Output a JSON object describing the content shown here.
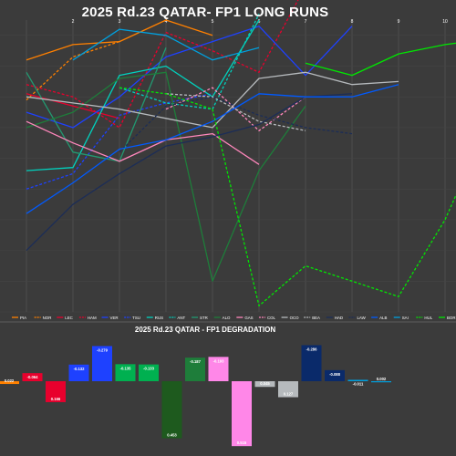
{
  "chart_data": [
    {
      "type": "line",
      "title": "2025 Rd.23 QATAR- FP1 LONG RUNS",
      "x_ticks": [
        "2",
        "3",
        "4",
        "5",
        "6",
        "7",
        "8",
        "9",
        "10",
        "11"
      ],
      "x": [
        1,
        2,
        3,
        4,
        5,
        6,
        7,
        8,
        9,
        10,
        11
      ],
      "grid": true,
      "legend_position": "bottom",
      "series": [
        {
          "name": "PIA",
          "color": "#ff8000",
          "dash": "solid",
          "values": [
            68,
            63,
            62,
            55,
            60,
            null,
            null,
            null,
            null,
            null,
            null
          ]
        },
        {
          "name": "NOR",
          "color": "#ff8000",
          "dash": "dashed",
          "values": [
            81,
            67,
            62,
            null,
            null,
            null,
            null,
            null,
            null,
            null,
            null
          ]
        },
        {
          "name": "LEC",
          "color": "#e8002d",
          "dash": "solid",
          "values": [
            79,
            83,
            87,
            null,
            null,
            null,
            null,
            null,
            null,
            null,
            null
          ]
        },
        {
          "name": "HAM",
          "color": "#e8002d",
          "dash": "dashed",
          "values": [
            76,
            80,
            90,
            59,
            65,
            72,
            44,
            null,
            null,
            null,
            null
          ]
        },
        {
          "name": "VER",
          "color": "#1e41ff",
          "dash": "solid",
          "values": [
            85,
            90,
            80,
            67,
            62,
            57,
            73,
            57,
            null,
            null,
            null
          ]
        },
        {
          "name": "TSU",
          "color": "#1e41ff",
          "dash": "dashed",
          "values": [
            110,
            105,
            86,
            82,
            79,
            null,
            null,
            null,
            null,
            null,
            null
          ]
        },
        {
          "name": "RUS",
          "color": "#00d2be",
          "dash": "solid",
          "values": [
            104,
            103,
            73,
            70,
            80,
            55,
            null,
            null,
            null,
            null,
            null
          ]
        },
        {
          "name": "ANT",
          "color": "#00d2be",
          "dash": "dashed",
          "values": [
            null,
            null,
            77,
            82,
            84,
            53,
            null,
            null,
            null,
            null,
            null
          ]
        },
        {
          "name": "STR",
          "color": "#229971",
          "dash": "solid",
          "values": [
            72,
            98,
            101,
            64,
            null,
            null,
            null,
            null,
            null,
            null,
            null
          ]
        },
        {
          "name": "ALO",
          "color": "#1e7d3a",
          "dash": "solid",
          "values": [
            90,
            85,
            74,
            72,
            140,
            104,
            83,
            null,
            null,
            null,
            null
          ]
        },
        {
          "name": "GAS",
          "color": "#ff87bc",
          "dash": "solid",
          "values": [
            88,
            95,
            101,
            94,
            92,
            102,
            null,
            null,
            null,
            null,
            null
          ]
        },
        {
          "name": "COL",
          "color": "#ff87bc",
          "dash": "dashed",
          "values": [
            null,
            null,
            null,
            84,
            77,
            91,
            80,
            null,
            null,
            null,
            null
          ]
        },
        {
          "name": "OCO",
          "color": "#b6babd",
          "dash": "solid",
          "values": [
            80,
            82,
            84,
            87,
            90,
            74,
            72,
            76,
            75,
            null,
            null
          ]
        },
        {
          "name": "BEA",
          "color": "#b6babd",
          "dash": "dashed",
          "values": [
            null,
            null,
            null,
            79,
            80,
            88,
            91,
            null,
            null,
            null,
            null
          ]
        },
        {
          "name": "HAD",
          "color": "#1c2d57",
          "dash": "solid",
          "values": [
            130,
            115,
            105,
            96,
            93,
            89,
            80,
            79,
            null,
            null,
            null
          ]
        },
        {
          "name": "LAW",
          "color": "#1c2d57",
          "dash": "dashed",
          "values": [
            null,
            null,
            98,
            83,
            80,
            86,
            90,
            92,
            null,
            null,
            null
          ]
        },
        {
          "name": "ALB",
          "color": "#005aff",
          "dash": "solid",
          "values": [
            118,
            108,
            97,
            94,
            88,
            79,
            80,
            80,
            76,
            null,
            null
          ]
        },
        {
          "name": "SAI",
          "color": "#00a0de",
          "dash": "solid",
          "values": [
            null,
            68,
            58,
            60,
            68,
            64,
            null,
            null,
            null,
            null,
            null
          ]
        },
        {
          "name": "HUL",
          "color": "#00e701",
          "dash": "dashed",
          "values": [
            null,
            null,
            77,
            79,
            84,
            148,
            135,
            140,
            145,
            120,
            86
          ]
        },
        {
          "name": "BOR",
          "color": "#00e701",
          "dash": "solid",
          "values": [
            null,
            null,
            null,
            null,
            null,
            null,
            69,
            73,
            66,
            63,
            61
          ]
        }
      ]
    },
    {
      "type": "bar",
      "title": "2025 Rd.23 QATAR - FP1 DEGRADATION",
      "categories": [
        "PIA",
        "NOR",
        "LEC",
        "HAM",
        "VER",
        "TSU",
        "RUS",
        "ANT",
        "ALO",
        "GAS",
        "COL",
        "OCO",
        "BEA",
        "HAD",
        "LAW",
        "ALB",
        "SAI"
      ],
      "values": [
        0.022,
        -0.064,
        0.166,
        -0.132,
        -0.279,
        -0.135,
        -0.133,
        0.453,
        -0.187,
        -0.193,
        0.515,
        0.045,
        0.127,
        -0.286,
        -0.088,
        -0.011,
        0.002
      ],
      "labels": [
        "0.022",
        "-0.064",
        "0.166",
        "-0.132",
        "-0.279",
        "-0.135",
        "-0.133",
        "0.453",
        "-0.187",
        "-0.193",
        "0.515",
        "0.045",
        "0.127",
        "-0.286",
        "-0.088",
        "-0.011",
        "0.002"
      ],
      "colors": [
        "#ff8000",
        "#e8002d",
        "#e8002d",
        "#1e41ff",
        "#1e41ff",
        "#00b050",
        "#00b050",
        "#1e5a1e",
        "#1e7d3a",
        "#ff87e8",
        "#ff87e8",
        "#b6babd",
        "#b6babd",
        "#0a2a6a",
        "#0a2a6a",
        "#00a0de",
        "#00a0de"
      ],
      "ylim": [
        -0.32,
        0.55
      ]
    }
  ]
}
